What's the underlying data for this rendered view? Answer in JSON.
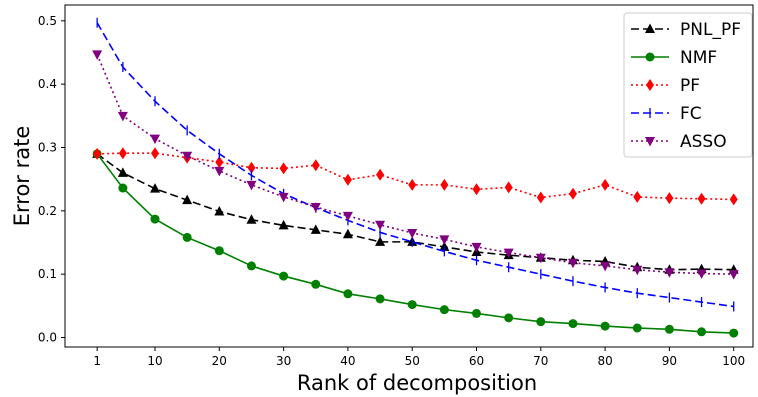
{
  "chart_data": {
    "type": "line",
    "xlabel": "Rank of decomposition",
    "ylabel": "Error rate",
    "x_ticks": [
      1,
      10,
      20,
      30,
      40,
      50,
      60,
      70,
      80,
      90,
      100
    ],
    "y_ticks": [
      0.0,
      0.1,
      0.2,
      0.3,
      0.4,
      0.5
    ],
    "y_tick_labels": [
      "0.0",
      "0.1",
      "0.2",
      "0.3",
      "0.4",
      "0.5"
    ],
    "xlim": [
      -4,
      103
    ],
    "ylim": [
      -0.015,
      0.525
    ],
    "x": [
      1,
      5,
      10,
      15,
      20,
      25,
      30,
      35,
      40,
      45,
      50,
      55,
      60,
      65,
      70,
      75,
      80,
      85,
      90,
      95,
      100
    ],
    "legend_position": "top-right",
    "grid": false,
    "series": [
      {
        "name": "PNL_PF",
        "color": "#000000",
        "linestyle": "dashed",
        "marker": "triangle-up",
        "values": [
          0.29,
          0.26,
          0.235,
          0.217,
          0.199,
          0.186,
          0.177,
          0.17,
          0.163,
          0.151,
          0.151,
          0.143,
          0.135,
          0.13,
          0.126,
          0.122,
          0.12,
          0.111,
          0.107,
          0.108,
          0.107
        ]
      },
      {
        "name": "NMF",
        "color": "#008000",
        "linestyle": "solid",
        "marker": "circle",
        "values": [
          0.29,
          0.236,
          0.187,
          0.158,
          0.137,
          0.113,
          0.097,
          0.084,
          0.069,
          0.061,
          0.052,
          0.044,
          0.038,
          0.031,
          0.025,
          0.022,
          0.018,
          0.015,
          0.013,
          0.009,
          0.007
        ]
      },
      {
        "name": "PF",
        "color": "#ff0000",
        "linestyle": "dotted",
        "marker": "diamond",
        "values": [
          0.29,
          0.291,
          0.291,
          0.284,
          0.277,
          0.268,
          0.267,
          0.272,
          0.249,
          0.257,
          0.241,
          0.241,
          0.234,
          0.237,
          0.221,
          0.227,
          0.241,
          0.222,
          0.22,
          0.219,
          0.218
        ]
      },
      {
        "name": "FC",
        "color": "#0000ff",
        "linestyle": "dashed",
        "marker": "tick",
        "values": [
          0.497,
          0.427,
          0.373,
          0.327,
          0.29,
          0.256,
          0.227,
          0.205,
          0.185,
          0.166,
          0.151,
          0.136,
          0.122,
          0.111,
          0.1,
          0.089,
          0.079,
          0.07,
          0.063,
          0.056,
          0.049
        ]
      },
      {
        "name": "ASSO",
        "color": "#800080",
        "linestyle": "dotted",
        "marker": "triangle-down",
        "values": [
          0.447,
          0.35,
          0.314,
          0.287,
          0.263,
          0.241,
          0.222,
          0.206,
          0.192,
          0.178,
          0.165,
          0.155,
          0.143,
          0.134,
          0.126,
          0.118,
          0.113,
          0.107,
          0.103,
          0.101,
          0.1
        ]
      }
    ]
  }
}
